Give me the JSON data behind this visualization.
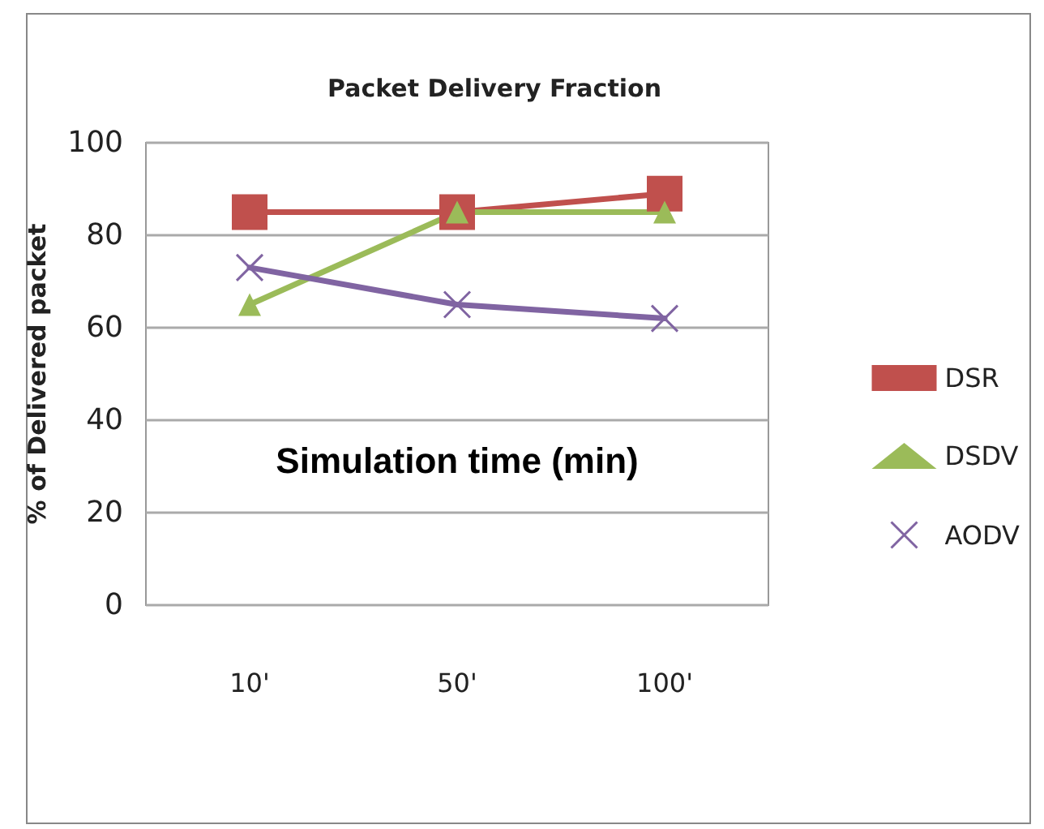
{
  "chart_data": {
    "type": "line",
    "title": "Packet Delivery Fraction",
    "xlabel": "Simulation time (min)",
    "ylabel": "% of Delivered packet",
    "categories": [
      "10'",
      "50'",
      "100'"
    ],
    "series": [
      {
        "name": "DSR",
        "color": "#c0504d",
        "values": [
          85,
          85,
          89
        ],
        "marker": "square"
      },
      {
        "name": "DSDV",
        "color": "#9bbb59",
        "values": [
          65,
          85,
          85
        ],
        "marker": "triangle"
      },
      {
        "name": "AODV",
        "color": "#8064a2",
        "values": [
          73,
          65,
          62
        ],
        "marker": "cross"
      }
    ],
    "ylim": [
      0,
      100
    ],
    "yticks": [
      0,
      20,
      40,
      60,
      80,
      100
    ],
    "grid": "y",
    "legend": "right"
  }
}
